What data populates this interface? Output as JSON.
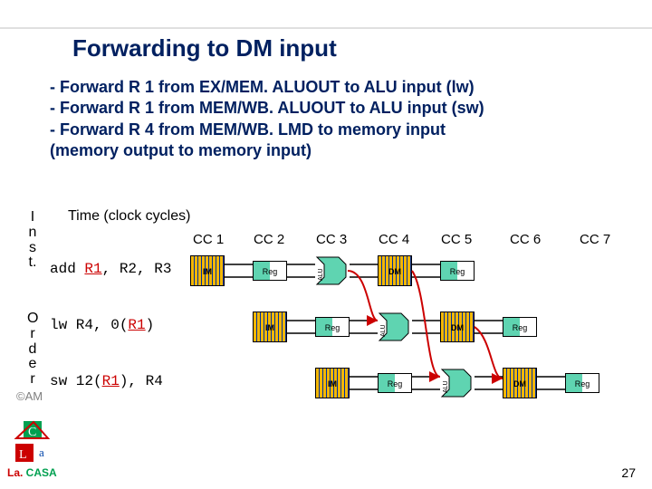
{
  "title": "Forwarding to DM input",
  "bullets": [
    "- Forward R 1 from EX/MEM. ALUOUT to ALU input (lw)",
    "- Forward R 1 from MEM/WB. ALUOUT to ALU input (sw)",
    "- Forward R 4 from MEM/WB. LMD to memory input",
    "  (memory output to memory input)"
  ],
  "time_label": "Time (clock cycles)",
  "vertical_inst": "I\nn\ns\nt.",
  "vertical_order": "O\nr\nd\ne\nr",
  "cc": {
    "1": "CC 1",
    "2": "CC 2",
    "3": "CC 3",
    "4": "CC 4",
    "5": "CC 5",
    "6": "CC 6",
    "7": "CC 7"
  },
  "instrs": {
    "add": {
      "op": "add ",
      "r1": "R1",
      "rest": ", R2, R3"
    },
    "lw": {
      "op": "lw  ",
      "r1": "R1",
      "pre": "R4, 0(",
      "post": ")"
    },
    "sw": {
      "op": "sw  ",
      "r1": "R1",
      "pre": "12(",
      "post": "), R4"
    }
  },
  "stage_labels": {
    "im": "IM",
    "reg": "Reg",
    "dm": "DM",
    "alu": "ALU"
  },
  "layout": {
    "cc_x": {
      "1": 213,
      "2": 280,
      "3": 349,
      "4": 418,
      "5": 487,
      "6": 563,
      "7": 640
    },
    "stage_x": {
      "1": 210,
      "2": 279,
      "3": 348,
      "4": 417,
      "5": 486,
      "6": 555,
      "7": 624
    },
    "row_y": {
      "add": 282,
      "lw": 344,
      "sw": 406
    },
    "wire_color_black": "#000000",
    "wire_color_red": "#cc0000",
    "wire_w": 1.4
  },
  "footer": {
    "am": "©AM",
    "lacasa": "La. CASA",
    "page": "27"
  }
}
